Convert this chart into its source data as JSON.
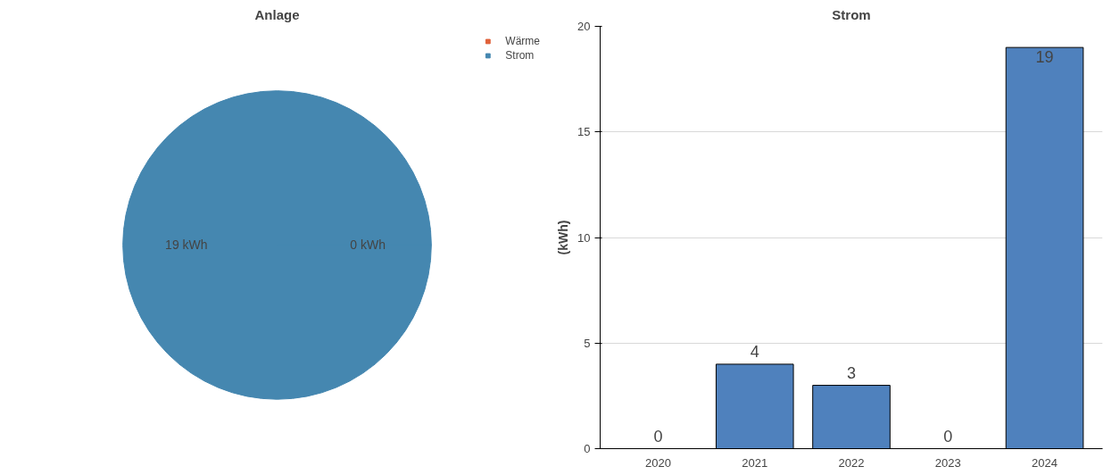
{
  "chart_data": [
    {
      "type": "pie",
      "title": "Anlage",
      "categories": [
        "Wärme",
        "Strom"
      ],
      "values": [
        0,
        19
      ],
      "colors": [
        "#e0623a",
        "#4587b0"
      ],
      "value_labels": [
        "0 kWh",
        "19 kWh"
      ],
      "legend": "top right"
    },
    {
      "type": "bar",
      "title": "Strom",
      "ylabel": "(kWh)",
      "categories": [
        "2020",
        "2021",
        "2022",
        "2023",
        "2024"
      ],
      "values": [
        0,
        4,
        3,
        0,
        19
      ],
      "color": "#4f81bd",
      "ylim": [
        0,
        20
      ],
      "yticks": [
        0,
        5,
        10,
        15,
        20
      ],
      "grid": "y",
      "data_labels": true
    }
  ]
}
